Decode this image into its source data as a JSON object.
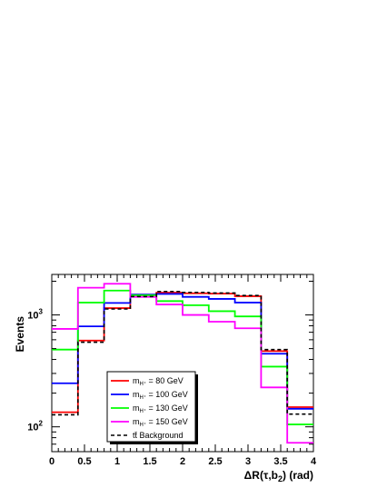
{
  "chart_data": {
    "type": "line",
    "step": true,
    "x_edges": [
      0,
      0.4,
      0.8,
      1.2,
      1.6,
      2.0,
      2.4,
      2.8,
      3.2,
      3.6,
      4.0
    ],
    "xlim": [
      0,
      4
    ],
    "ylim": [
      60,
      2300
    ],
    "yscale": "log",
    "xticks": [
      "0",
      "0.5",
      "1",
      "1.5",
      "2",
      "2.5",
      "3",
      "3.5",
      "4"
    ],
    "yticks": [
      "10",
      "10"
    ],
    "ytick_exponents": [
      "2",
      "3"
    ],
    "ytick_values": [
      100,
      1000
    ],
    "xlabel_prefix": "ΔR(τ,b",
    "xlabel_sub": "2",
    "xlabel_suffix": ") (rad)",
    "ylabel": "Events",
    "grid": false,
    "legend_position": "bottom-left",
    "series": [
      {
        "name_prefix": "m",
        "name_sub": "H⁺",
        "name_suffix": " = 80 GeV",
        "color": "#ff0000",
        "dash": false,
        "values": [
          135,
          590,
          1150,
          1500,
          1580,
          1560,
          1550,
          1470,
          475,
          150
        ]
      },
      {
        "name_prefix": "m",
        "name_sub": "H⁺",
        "name_suffix": " = 100 GeV",
        "color": "#0000ff",
        "dash": false,
        "values": [
          245,
          790,
          1280,
          1520,
          1540,
          1450,
          1390,
          1290,
          450,
          145
        ]
      },
      {
        "name_prefix": "m",
        "name_sub": "H⁺",
        "name_suffix": " = 130 GeV",
        "color": "#00ff00",
        "dash": false,
        "values": [
          490,
          1290,
          1650,
          1500,
          1330,
          1220,
          1080,
          970,
          345,
          105
        ]
      },
      {
        "name_prefix": "m",
        "name_sub": "H⁺",
        "name_suffix": " = 150 GeV",
        "color": "#ff00ff",
        "dash": false,
        "values": [
          750,
          1750,
          1900,
          1450,
          1240,
          1000,
          870,
          760,
          225,
          72
        ]
      },
      {
        "name_prefix": "",
        "name_sub": "",
        "name_suffix": "tt̄ Background",
        "color": "#000000",
        "dash": true,
        "values": [
          128,
          570,
          1130,
          1460,
          1620,
          1590,
          1570,
          1490,
          490,
          130
        ]
      }
    ]
  }
}
